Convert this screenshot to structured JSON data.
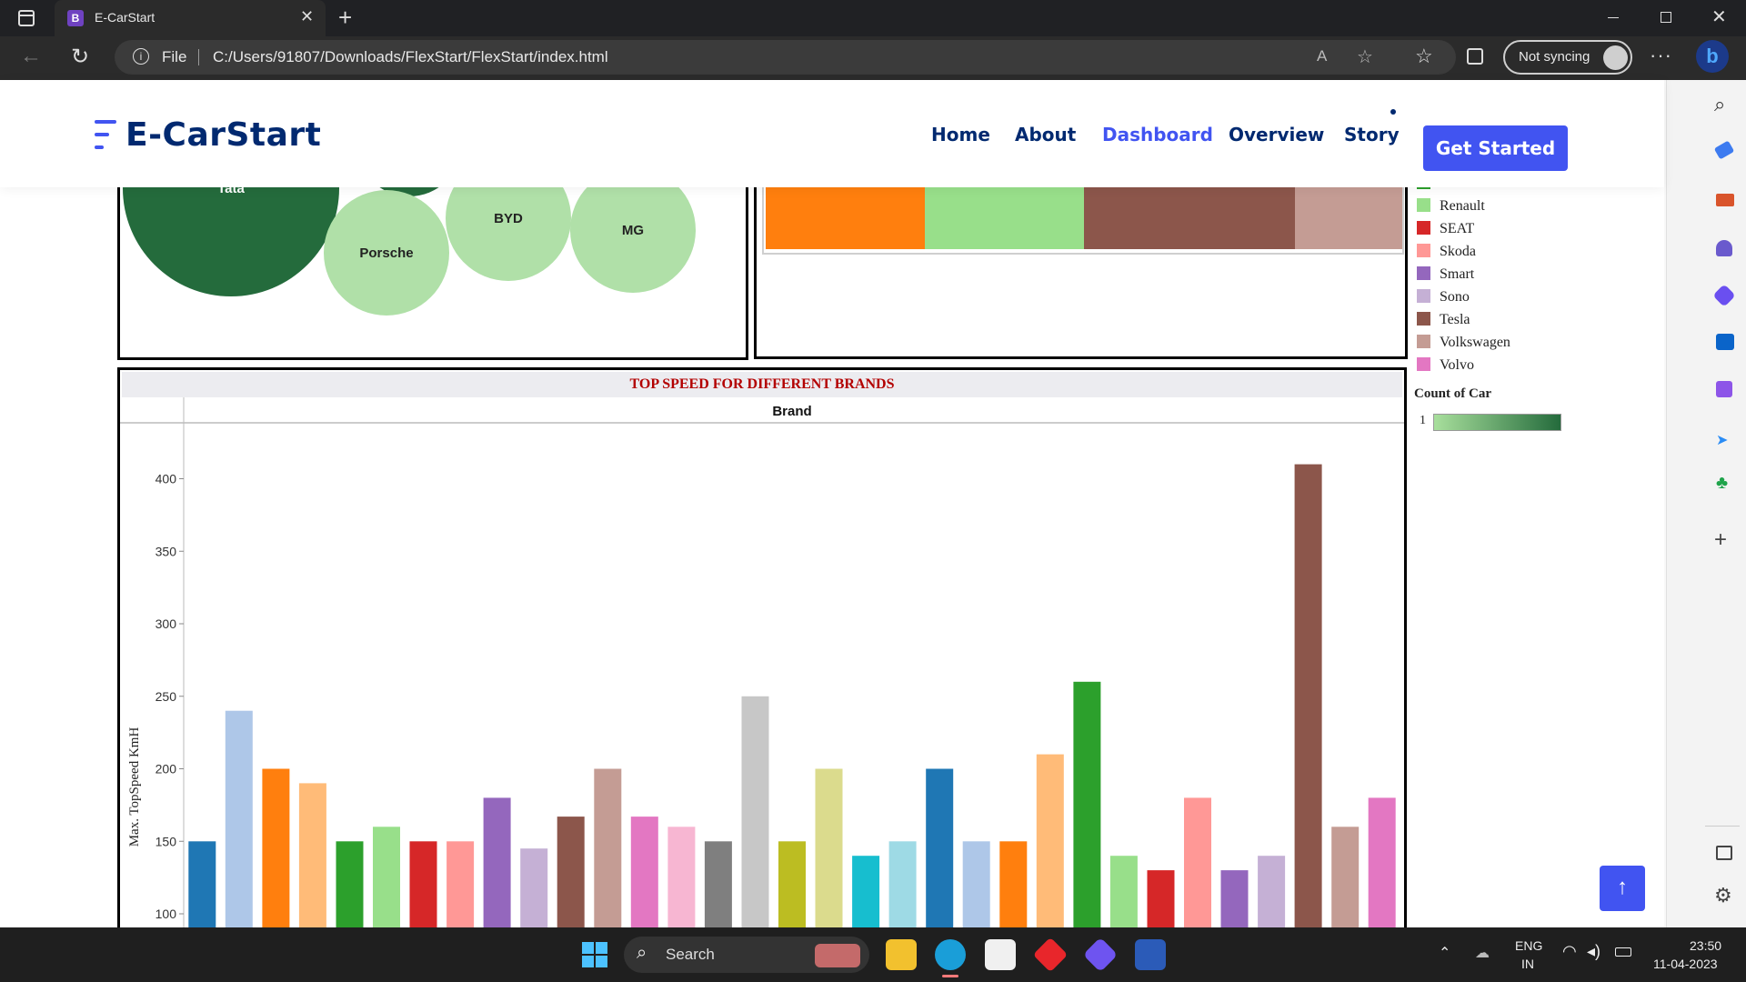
{
  "browser": {
    "tab_title": "E-CarStart",
    "tab_icon_letter": "B",
    "file_label": "File",
    "url": "C:/Users/91807/Downloads/FlexStart/FlexStart/index.html",
    "sync_label": "Not syncing"
  },
  "site": {
    "logo_text": "E-CarStart",
    "nav": [
      "Home",
      "About",
      "Dashboard",
      "Overview",
      "Story"
    ],
    "active_nav": "Dashboard",
    "cta": "Get Started",
    "brand_color": "#4154f1",
    "nav_color": "#012970"
  },
  "bubble_chart": {
    "bubbles": [
      {
        "label": "Tata",
        "color": "#246b3c"
      },
      {
        "label": "Porsche",
        "color": "#b0e0a8"
      },
      {
        "label": "BYD",
        "color": "#b0e0a8"
      },
      {
        "label": "MG",
        "color": "#b0e0a8"
      }
    ]
  },
  "stack_colors": [
    "#ff7f0e",
    "#98df8a",
    "#8c564b",
    "#c49c94"
  ],
  "legend": {
    "items": [
      {
        "label": "Renault",
        "color": "#98df8a"
      },
      {
        "label": "SEAT",
        "color": "#d62728"
      },
      {
        "label": "Skoda",
        "color": "#ff9896"
      },
      {
        "label": "Smart",
        "color": "#9467bd"
      },
      {
        "label": "Sono",
        "color": "#c5b0d5"
      },
      {
        "label": "Tesla",
        "color": "#8c564b"
      },
      {
        "label": "Volkswagen",
        "color": "#c49c94"
      },
      {
        "label": "Volvo",
        "color": "#e377c2"
      }
    ],
    "count_title": "Count of Car",
    "count_value": "1"
  },
  "chart_data": {
    "type": "bar",
    "title": "TOP SPEED FOR DIFFERENT BRANDS",
    "header_label": "Brand",
    "ylabel": "Max. TopSpeed KmH",
    "yticks": [
      100,
      150,
      200,
      250,
      300,
      350,
      400
    ],
    "ylim": [
      88,
      420
    ],
    "values": [
      150,
      240,
      200,
      190,
      150,
      160,
      150,
      150,
      180,
      145,
      167,
      200,
      167,
      160,
      150,
      250,
      150,
      200,
      140,
      150,
      200,
      150,
      150,
      210,
      260,
      140,
      130,
      180,
      130,
      140,
      410,
      160,
      180
    ],
    "colors": [
      "#1f77b4",
      "#aec7e8",
      "#ff7f0e",
      "#ffbb78",
      "#2ca02c",
      "#98df8a",
      "#d62728",
      "#ff9896",
      "#9467bd",
      "#c5b0d5",
      "#8c564b",
      "#c49c94",
      "#e377c2",
      "#f7b6d2",
      "#7f7f7f",
      "#c7c7c7",
      "#bcbd22",
      "#dbdb8d",
      "#17becf",
      "#9edae5",
      "#1f77b4",
      "#aec7e8",
      "#ff7f0e",
      "#ffbb78",
      "#2ca02c",
      "#98df8a",
      "#d62728",
      "#ff9896",
      "#9467bd",
      "#c5b0d5",
      "#8c564b",
      "#c49c94",
      "#e377c2"
    ]
  },
  "taskbar": {
    "search_label": "Search",
    "lang_top": "ENG",
    "lang_bottom": "IN",
    "time": "23:50",
    "date": "11-04-2023"
  }
}
